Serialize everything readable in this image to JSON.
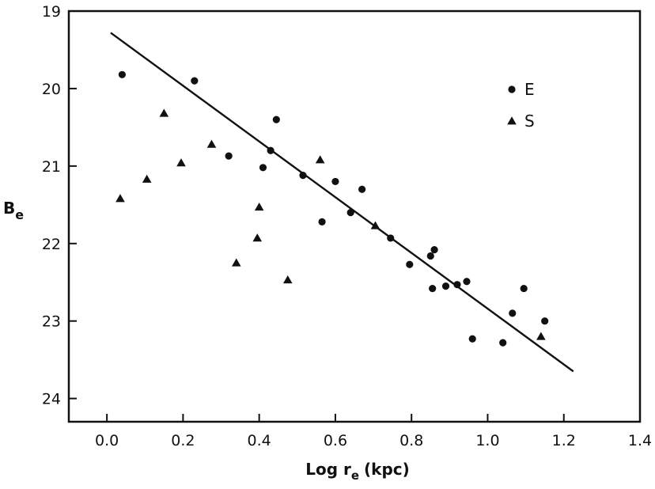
{
  "chart_data": {
    "type": "scatter",
    "xlabel": "Log r",
    "xlabel_sub": "e",
    "xlabel_unit": "(kpc)",
    "ylabel": "B",
    "ylabel_sub": "e",
    "xlim": [
      -0.1,
      1.4
    ],
    "ylim": [
      24.3,
      19
    ],
    "y_inverted": true,
    "xticks": [
      0.0,
      0.2,
      0.4,
      0.6,
      0.8,
      1.0,
      1.2,
      1.4
    ],
    "xtick_labels": [
      "0.0",
      "0.2",
      "0.4",
      "0.6",
      "0.8",
      "1.0",
      "1.2",
      "1.4"
    ],
    "yticks": [
      19,
      20,
      21,
      22,
      23,
      24
    ],
    "ytick_labels": [
      "19",
      "20",
      "21",
      "22",
      "23",
      "24"
    ],
    "grid": false,
    "legend_position": "top-right",
    "series": [
      {
        "name": "E",
        "marker": "circle",
        "points": [
          {
            "x": 0.04,
            "y": 19.82
          },
          {
            "x": 0.23,
            "y": 19.9
          },
          {
            "x": 0.32,
            "y": 20.87
          },
          {
            "x": 0.41,
            "y": 21.02
          },
          {
            "x": 0.43,
            "y": 20.8
          },
          {
            "x": 0.445,
            "y": 20.4
          },
          {
            "x": 0.515,
            "y": 21.12
          },
          {
            "x": 0.565,
            "y": 21.72
          },
          {
            "x": 0.6,
            "y": 21.2
          },
          {
            "x": 0.64,
            "y": 21.6
          },
          {
            "x": 0.67,
            "y": 21.3
          },
          {
            "x": 0.745,
            "y": 21.93
          },
          {
            "x": 0.795,
            "y": 22.27
          },
          {
            "x": 0.85,
            "y": 22.16
          },
          {
            "x": 0.86,
            "y": 22.08
          },
          {
            "x": 0.855,
            "y": 22.58
          },
          {
            "x": 0.89,
            "y": 22.55
          },
          {
            "x": 0.92,
            "y": 22.53
          },
          {
            "x": 0.945,
            "y": 22.49
          },
          {
            "x": 0.96,
            "y": 23.23
          },
          {
            "x": 1.04,
            "y": 23.28
          },
          {
            "x": 1.065,
            "y": 22.9
          },
          {
            "x": 1.095,
            "y": 22.58
          },
          {
            "x": 1.15,
            "y": 23.0
          }
        ]
      },
      {
        "name": "S",
        "marker": "triangle",
        "points": [
          {
            "x": 0.035,
            "y": 21.42
          },
          {
            "x": 0.105,
            "y": 21.17
          },
          {
            "x": 0.15,
            "y": 20.32
          },
          {
            "x": 0.195,
            "y": 20.96
          },
          {
            "x": 0.275,
            "y": 20.72
          },
          {
            "x": 0.34,
            "y": 22.25
          },
          {
            "x": 0.395,
            "y": 21.93
          },
          {
            "x": 0.4,
            "y": 21.53
          },
          {
            "x": 0.475,
            "y": 22.47
          },
          {
            "x": 0.56,
            "y": 20.92
          },
          {
            "x": 0.705,
            "y": 21.77
          },
          {
            "x": 1.14,
            "y": 23.2
          }
        ]
      }
    ],
    "fit_line": {
      "x1": 0.01,
      "y1": 19.28,
      "x2": 1.225,
      "y2": 23.65
    }
  }
}
